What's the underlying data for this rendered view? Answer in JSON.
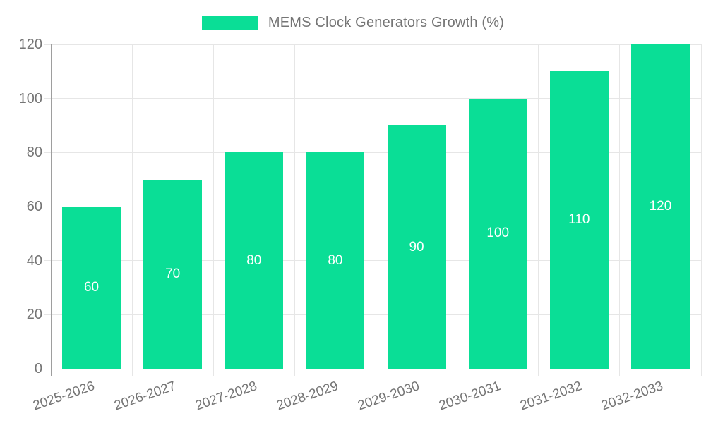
{
  "legend": {
    "label": "MEMS Clock Generators Growth (%)"
  },
  "chart_data": {
    "type": "bar",
    "categories": [
      "2025-2026",
      "2026-2027",
      "2027-2028",
      "2028-2029",
      "2029-2030",
      "2030-2031",
      "2031-2032",
      "2032-2033"
    ],
    "series": [
      {
        "name": "MEMS Clock Generators Growth (%)",
        "values": [
          60,
          70,
          80,
          80,
          90,
          100,
          110,
          120
        ]
      }
    ],
    "value_labels": [
      "60",
      "70",
      "80",
      "80",
      "90",
      "100",
      "110",
      "120"
    ],
    "xlabel": "",
    "ylabel": "",
    "ylim": [
      0,
      120
    ],
    "yticks": [
      0,
      20,
      40,
      60,
      80,
      100,
      120
    ],
    "grid": true,
    "legend_position": "top",
    "colors": {
      "bar": "#0ade96",
      "grid": "#e6e6e6",
      "axis": "#9e9e9e",
      "baseline": "#b0b0b0",
      "text": "#757575",
      "value_label": "#ffffff",
      "background": "#ffffff"
    }
  }
}
